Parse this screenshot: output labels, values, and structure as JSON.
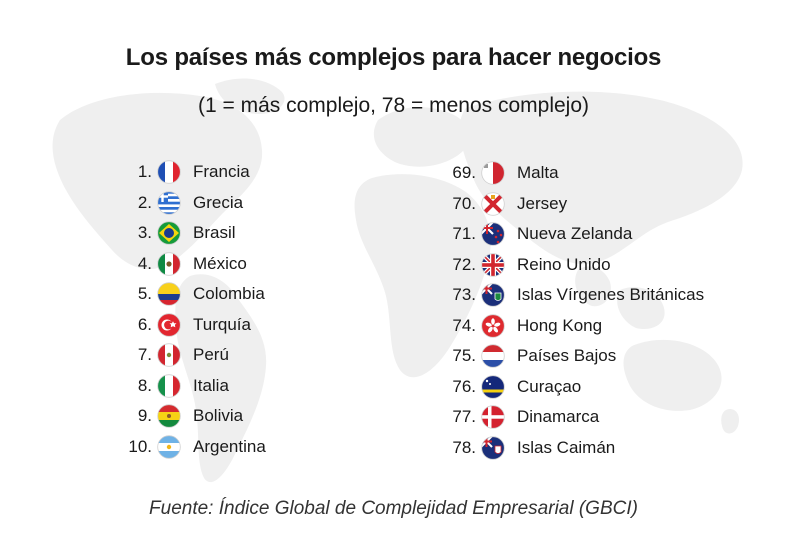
{
  "chart_data": {
    "type": "table",
    "title": "Los países más complejos para hacer negocios",
    "subtitle": "(1 = más complejo, 78 = menos complejo)",
    "columns": [
      {
        "rows": [
          {
            "rank": "1.",
            "country": "Francia",
            "flag": "france-flag-icon"
          },
          {
            "rank": "2.",
            "country": "Grecia",
            "flag": "greece-flag-icon"
          },
          {
            "rank": "3.",
            "country": "Brasil",
            "flag": "brazil-flag-icon"
          },
          {
            "rank": "4.",
            "country": "México",
            "flag": "mexico-flag-icon"
          },
          {
            "rank": "5.",
            "country": "Colombia",
            "flag": "colombia-flag-icon"
          },
          {
            "rank": "6.",
            "country": "Turquía",
            "flag": "turkey-flag-icon"
          },
          {
            "rank": "7.",
            "country": "Perú",
            "flag": "peru-flag-icon"
          },
          {
            "rank": "8.",
            "country": "Italia",
            "flag": "italy-flag-icon"
          },
          {
            "rank": "9.",
            "country": "Bolivia",
            "flag": "bolivia-flag-icon"
          },
          {
            "rank": "10.",
            "country": "Argentina",
            "flag": "argentina-flag-icon"
          }
        ]
      },
      {
        "rows": [
          {
            "rank": "69.",
            "country": "Malta",
            "flag": "malta-flag-icon"
          },
          {
            "rank": "70.",
            "country": "Jersey",
            "flag": "jersey-flag-icon"
          },
          {
            "rank": "71.",
            "country": "Nueva Zelanda",
            "flag": "new-zealand-flag-icon"
          },
          {
            "rank": "72.",
            "country": "Reino Unido",
            "flag": "united-kingdom-flag-icon"
          },
          {
            "rank": "73.",
            "country": "Islas Vírgenes Británicas",
            "flag": "british-virgin-islands-flag-icon"
          },
          {
            "rank": "74.",
            "country": "Hong Kong",
            "flag": "hong-kong-flag-icon"
          },
          {
            "rank": "75.",
            "country": "Países Bajos",
            "flag": "netherlands-flag-icon"
          },
          {
            "rank": "76.",
            "country": "Curaçao",
            "flag": "curacao-flag-icon"
          },
          {
            "rank": "77.",
            "country": "Dinamarca",
            "flag": "denmark-flag-icon"
          },
          {
            "rank": "78.",
            "country": "Islas Caimán",
            "flag": "cayman-islands-flag-icon"
          }
        ]
      }
    ],
    "source": "Fuente: Índice Global de Complejidad Empresarial (GBCI)",
    "background": "world-map-icon",
    "colors": {
      "text": "#1a1a1a",
      "map": "#eeeeee"
    }
  }
}
